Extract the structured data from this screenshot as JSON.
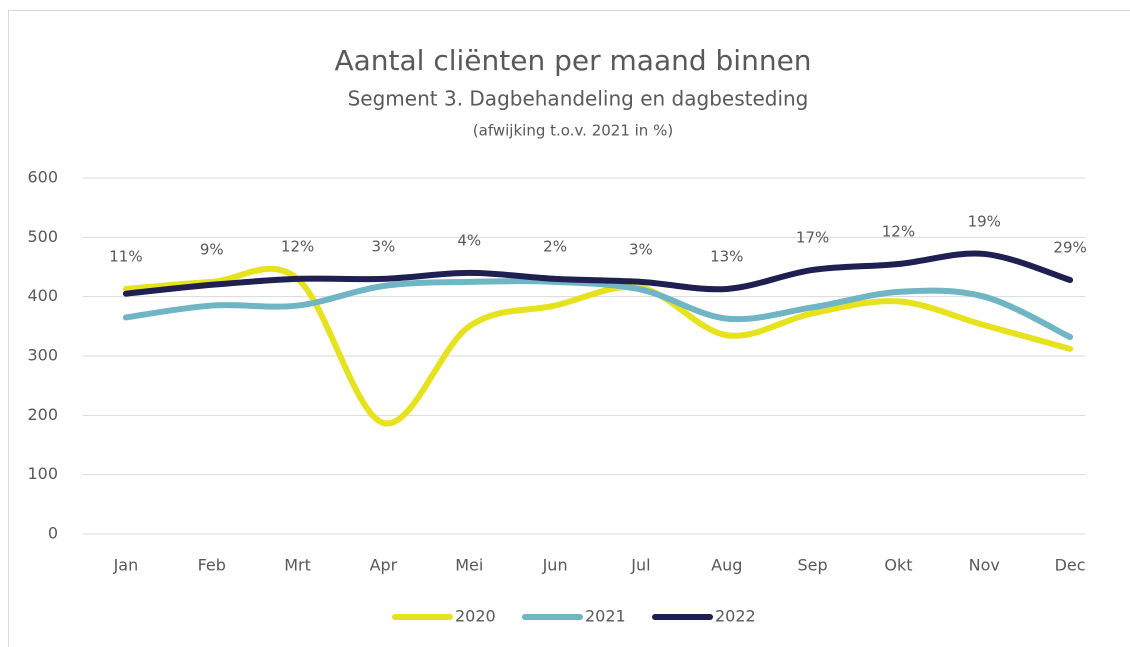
{
  "chart_data": {
    "type": "line",
    "title": "Aantal cliënten per maand binnen",
    "subtitle": "Segment 3. Dagbehandeling en dagbesteding",
    "note": "(afwijking t.o.v. 2021 in %)",
    "categories": [
      "Jan",
      "Feb",
      "Mrt",
      "Apr",
      "Mei",
      "Jun",
      "Jul",
      "Aug",
      "Sep",
      "Okt",
      "Nov",
      "Dec"
    ],
    "series": [
      {
        "name": "2020",
        "color": "#e6e21e",
        "values": [
          413,
          425,
          430,
          187,
          350,
          385,
          415,
          335,
          372,
          392,
          352,
          312
        ]
      },
      {
        "name": "2021",
        "color": "#6fb5c4",
        "values": [
          365,
          385,
          385,
          418,
          425,
          425,
          412,
          363,
          382,
          408,
          400,
          332
        ]
      },
      {
        "name": "2022",
        "color": "#1f1f52",
        "values": [
          405,
          420,
          430,
          430,
          440,
          430,
          425,
          413,
          445,
          455,
          472,
          428
        ]
      }
    ],
    "annotations": [
      "11%",
      "9%",
      "12%",
      "3%",
      "4%",
      "2%",
      "3%",
      "13%",
      "17%",
      "12%",
      "19%",
      "29%"
    ],
    "ylim": [
      0,
      600
    ],
    "yticks": [
      0,
      100,
      200,
      300,
      400,
      500,
      600
    ],
    "grid": true,
    "legend": "bottom"
  }
}
